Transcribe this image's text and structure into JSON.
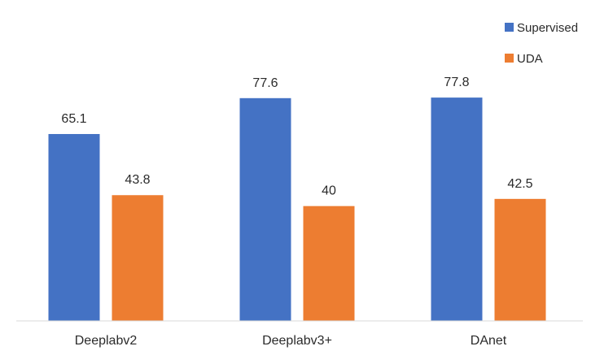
{
  "chart_data": {
    "type": "bar",
    "categories": [
      "Deeplabv2",
      "Deeplabv3+",
      "DAnet"
    ],
    "series": [
      {
        "name": "Supervised",
        "color": "#4472C4",
        "values": [
          65.1,
          77.6,
          77.8
        ]
      },
      {
        "name": "UDA",
        "color": "#ED7D31",
        "values": [
          43.8,
          40,
          42.5
        ]
      }
    ],
    "data_labels": [
      [
        "65.1",
        "77.6",
        "77.8"
      ],
      [
        "43.8",
        "40",
        "42.5"
      ]
    ],
    "title": "",
    "xlabel": "",
    "ylabel": "",
    "ylim": [
      0,
      100
    ],
    "grid": false,
    "legend_position": "top-right",
    "axis_color": "#d9d9d9"
  }
}
